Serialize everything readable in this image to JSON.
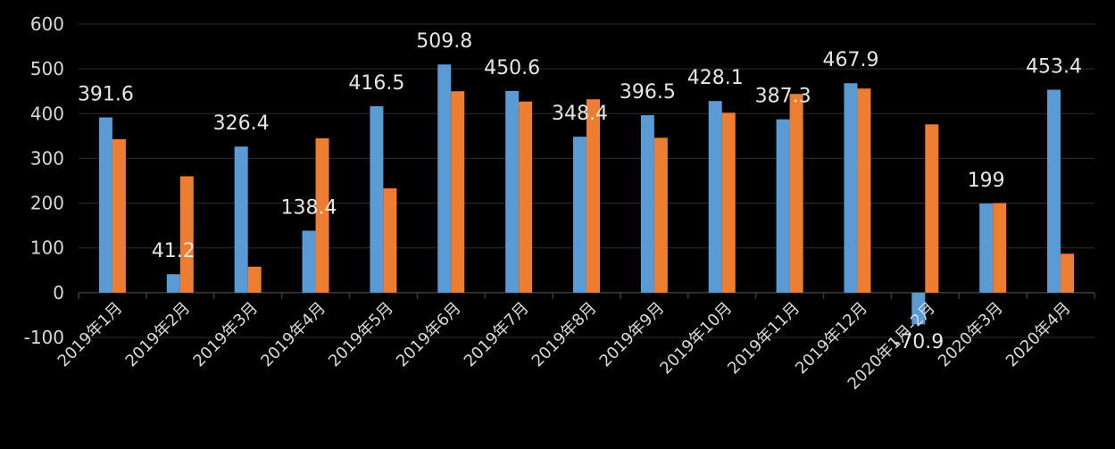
{
  "chart_data": {
    "type": "bar",
    "title": "",
    "xlabel": "",
    "ylabel": "",
    "ylim": [
      -100,
      600
    ],
    "yticks": [
      -100,
      0,
      100,
      200,
      300,
      400,
      500,
      600
    ],
    "grid": true,
    "categories": [
      "2019年1月",
      "2019年2月",
      "2019年3月",
      "2019年4月",
      "2019年5月",
      "2019年6月",
      "2019年7月",
      "2019年8月",
      "2019年9月",
      "2019年10月",
      "2019年11月",
      "2019年12月",
      "2020年1月-2月",
      "2020年3月",
      "2020年4月"
    ],
    "series": [
      {
        "color": "#5b9bd5",
        "values": [
          391.6,
          41.2,
          326.4,
          138.4,
          416.5,
          509.8,
          450.6,
          348.4,
          396.5,
          428.1,
          387.3,
          467.9,
          -70.9,
          199,
          453.4
        ],
        "labels": [
          "391.6",
          "41.2",
          "326.4",
          "138.4",
          "416.5",
          "509.8",
          "450.6",
          "348.4",
          "396.5",
          "428.1",
          "387.3",
          "467.9",
          "-70.9",
          "199",
          "453.4"
        ]
      },
      {
        "color": "#ed7d31",
        "values": [
          343,
          260,
          58,
          345,
          233,
          450,
          427,
          432,
          346,
          402,
          444,
          456,
          376,
          200,
          87
        ]
      }
    ]
  }
}
